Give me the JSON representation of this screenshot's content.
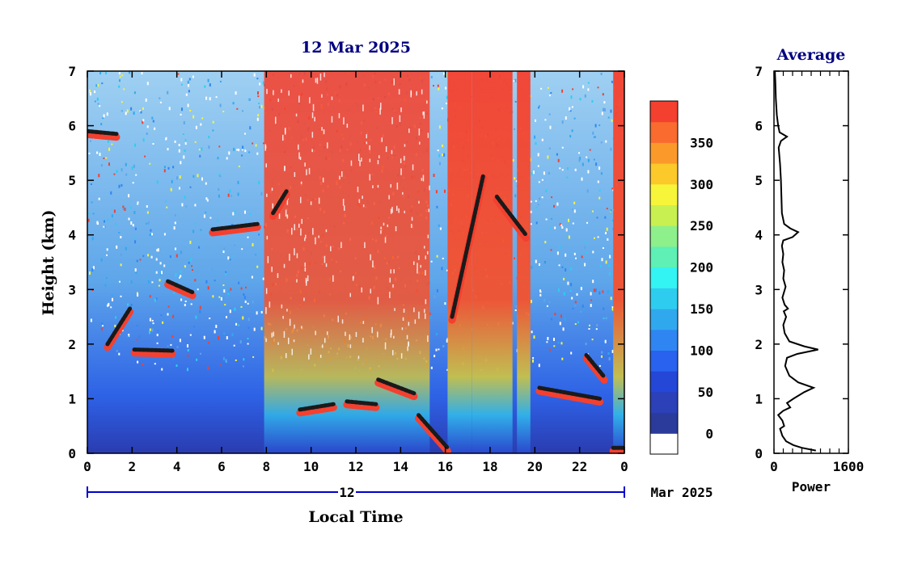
{
  "main_title": "12 Mar 2025",
  "profile_title": "Average",
  "date_axis": {
    "day_label": "12",
    "month_year": "Mar 2025",
    "xlabel": "Local Time"
  },
  "profile_xlabel": "Power",
  "colorbar": {
    "levels": [
      {
        "label": "0",
        "color": "#2b3b9b"
      },
      {
        "label": "",
        "color": "#2c40b8"
      },
      {
        "label": "50",
        "color": "#2447d8"
      },
      {
        "label": "",
        "color": "#2862ee"
      },
      {
        "label": "100",
        "color": "#2f86f2"
      },
      {
        "label": "",
        "color": "#30a8ee"
      },
      {
        "label": "150",
        "color": "#2ecdf0"
      },
      {
        "label": "",
        "color": "#34f3f3"
      },
      {
        "label": "200",
        "color": "#5ef0b5"
      },
      {
        "label": "",
        "color": "#8ef08a"
      },
      {
        "label": "250",
        "color": "#c8f050"
      },
      {
        "label": "",
        "color": "#f7f53a"
      },
      {
        "label": "300",
        "color": "#fbc92a"
      },
      {
        "label": "",
        "color": "#fb9a2a"
      },
      {
        "label": "350",
        "color": "#f96b2e"
      },
      {
        "label": "",
        "color": "#f4402f"
      }
    ],
    "low_color": "#ffffff"
  },
  "chart_data": [
    {
      "type": "heatmap",
      "title": "12 Mar 2025",
      "xlabel": "Local Time",
      "ylabel": "Height (km)",
      "xlim": [
        0,
        24
      ],
      "ylim": [
        0,
        7
      ],
      "x_ticks": [
        "0",
        "2",
        "4",
        "6",
        "8",
        "10",
        "12",
        "14",
        "16",
        "18",
        "20",
        "22",
        "0"
      ],
      "y_ticks": [
        "0",
        "1",
        "2",
        "3",
        "4",
        "5",
        "6",
        "7"
      ],
      "cloud_layers": [
        {
          "start": 0.0,
          "end": 1.3,
          "height": [
            5.9,
            5.85
          ]
        },
        {
          "start": 0.9,
          "end": 1.9,
          "height": [
            2.0,
            2.65
          ]
        },
        {
          "start": 2.1,
          "end": 3.8,
          "height": [
            1.9,
            1.88
          ]
        },
        {
          "start": 3.6,
          "end": 4.7,
          "height": [
            3.15,
            2.95
          ]
        },
        {
          "start": 5.6,
          "end": 7.6,
          "height": [
            4.1,
            4.2
          ]
        },
        {
          "start": 8.3,
          "end": 8.9,
          "height": [
            4.4,
            4.8
          ]
        },
        {
          "start": 9.5,
          "end": 11.0,
          "height": [
            0.8,
            0.9
          ]
        },
        {
          "start": 11.6,
          "end": 12.9,
          "height": [
            0.95,
            0.9
          ]
        },
        {
          "start": 13.0,
          "end": 14.6,
          "height": [
            1.35,
            1.1
          ]
        },
        {
          "start": 14.8,
          "end": 16.1,
          "height": [
            0.7,
            0.1
          ]
        },
        {
          "start": 16.3,
          "end": 17.7,
          "height": [
            2.5,
            5.1
          ]
        },
        {
          "start": 18.3,
          "end": 19.6,
          "height": [
            4.7,
            4.0
          ]
        },
        {
          "start": 20.2,
          "end": 22.9,
          "height": [
            1.2,
            1.0
          ]
        },
        {
          "start": 22.3,
          "end": 23.1,
          "height": [
            1.8,
            1.4
          ]
        },
        {
          "start": 23.5,
          "end": 24.0,
          "height": [
            0.1,
            0.1
          ]
        }
      ],
      "precipitation_bands": [
        {
          "start": 7.9,
          "end": 15.3
        },
        {
          "start": 16.1,
          "end": 17.2
        },
        {
          "start": 17.2,
          "end": 19.0
        },
        {
          "start": 19.2,
          "end": 19.8
        },
        {
          "start": 23.5,
          "end": 24.0
        }
      ]
    },
    {
      "type": "line",
      "title": "Average",
      "xlabel": "Power",
      "xlim": [
        0,
        1600
      ],
      "x_ticks": [
        "0",
        "1600"
      ],
      "ylim": [
        0,
        7
      ],
      "y_ticks": [
        "0",
        "1",
        "2",
        "3",
        "4",
        "5",
        "6",
        "7"
      ],
      "series": [
        {
          "points": [
            [
              900,
              0.05
            ],
            [
              600,
              0.1
            ],
            [
              420,
              0.15
            ],
            [
              260,
              0.22
            ],
            [
              180,
              0.32
            ],
            [
              130,
              0.45
            ],
            [
              220,
              0.5
            ],
            [
              180,
              0.6
            ],
            [
              90,
              0.7
            ],
            [
              200,
              0.78
            ],
            [
              350,
              0.84
            ],
            [
              280,
              0.92
            ],
            [
              420,
              1.0
            ],
            [
              650,
              1.12
            ],
            [
              850,
              1.2
            ],
            [
              520,
              1.3
            ],
            [
              330,
              1.42
            ],
            [
              240,
              1.6
            ],
            [
              280,
              1.75
            ],
            [
              500,
              1.82
            ],
            [
              950,
              1.9
            ],
            [
              650,
              1.96
            ],
            [
              330,
              2.05
            ],
            [
              230,
              2.2
            ],
            [
              200,
              2.35
            ],
            [
              260,
              2.5
            ],
            [
              210,
              2.6
            ],
            [
              300,
              2.65
            ],
            [
              230,
              2.72
            ],
            [
              180,
              2.85
            ],
            [
              250,
              3.05
            ],
            [
              200,
              3.2
            ],
            [
              220,
              3.35
            ],
            [
              180,
              3.5
            ],
            [
              200,
              3.65
            ],
            [
              170,
              3.8
            ],
            [
              200,
              3.9
            ],
            [
              400,
              3.96
            ],
            [
              520,
              4.05
            ],
            [
              350,
              4.12
            ],
            [
              220,
              4.2
            ],
            [
              170,
              4.4
            ],
            [
              160,
              4.7
            ],
            [
              150,
              5.0
            ],
            [
              130,
              5.3
            ],
            [
              100,
              5.6
            ],
            [
              150,
              5.72
            ],
            [
              280,
              5.8
            ],
            [
              120,
              5.88
            ],
            [
              90,
              6.0
            ],
            [
              60,
              6.2
            ],
            [
              40,
              6.5
            ],
            [
              30,
              6.8
            ],
            [
              20,
              7.0
            ]
          ]
        }
      ]
    }
  ]
}
